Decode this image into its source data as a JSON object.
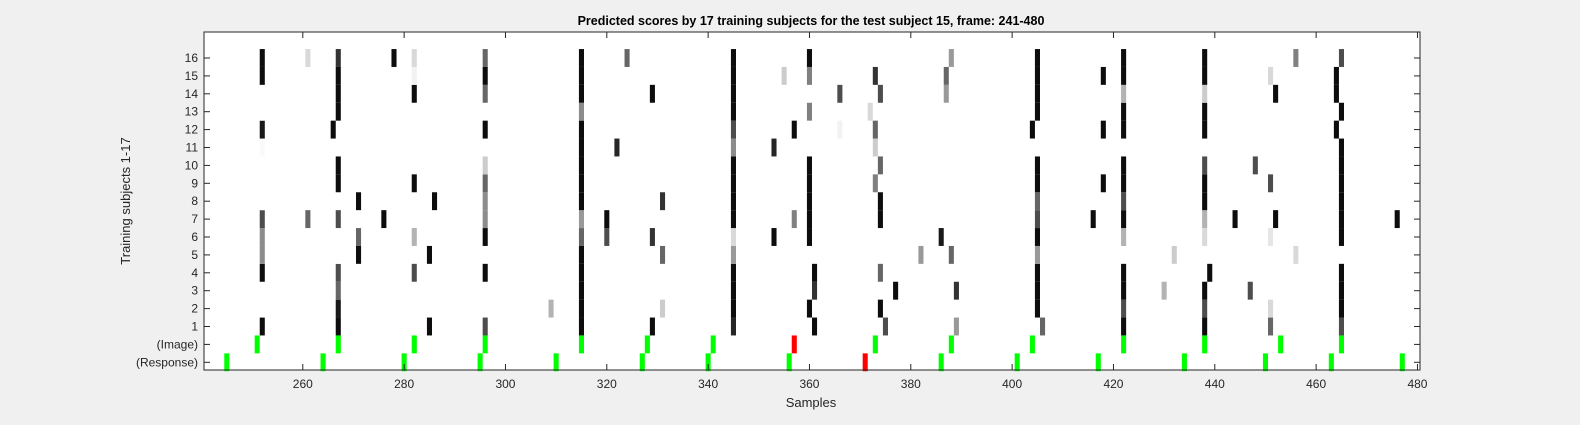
{
  "chart_data": {
    "type": "heatmap",
    "title": "Predicted scores by 17 training subjects for the test subject 15, frame: 241-480",
    "xlabel": "Samples",
    "ylabel": "Training subjects 1-17",
    "xlim": [
      241,
      480
    ],
    "xticks": [
      260,
      280,
      300,
      320,
      340,
      360,
      380,
      400,
      420,
      440,
      460,
      480
    ],
    "rows": [
      "16",
      "15",
      "14",
      "13",
      "12",
      "11",
      "10",
      "9",
      "8",
      "7",
      "6",
      "5",
      "4",
      "3",
      "2",
      "1",
      "(Image)",
      "(Response)"
    ],
    "grid": false,
    "colors": {
      "black": "#000000",
      "green": "#00ff00",
      "red": "#ff0000",
      "background": "#ffffff"
    },
    "subject_columns": [
      {
        "x": 252,
        "scores": {
          "16": 0.95,
          "15": 0.95,
          "14": 0,
          "13": 0,
          "12": 0.9,
          "11": 0.02,
          "10": 0,
          "9": 0,
          "8": 0,
          "7": 0.7,
          "6": 0.45,
          "5": 0.45,
          "4": 0.95,
          "3": 0,
          "2": 0,
          "1": 0.95
        }
      },
      {
        "x": 261,
        "scores": {
          "16": 0.15,
          "7": 0.6
        }
      },
      {
        "x": 266,
        "scores": {
          "12": 0.95
        }
      },
      {
        "x": 267,
        "scores": {
          "16": 0.8,
          "15": 0.95,
          "14": 0.95,
          "13": 0.95,
          "10": 0.95,
          "9": 0.95,
          "7": 0.7,
          "5": 0,
          "4": 0.7,
          "3": 0.6,
          "2": 0.9,
          "1": 0.95
        }
      },
      {
        "x": 271,
        "scores": {
          "8": 0.95,
          "6": 0.6,
          "5": 0.95
        }
      },
      {
        "x": 276,
        "scores": {
          "7": 0.95
        }
      },
      {
        "x": 278,
        "scores": {
          "16": 0.95
        }
      },
      {
        "x": 282,
        "scores": {
          "16": 0.15,
          "15": 0.05,
          "14": 0.95,
          "9": 0.95,
          "6": 0.3,
          "4": 0.7
        }
      },
      {
        "x": 285,
        "scores": {
          "1": 0.95,
          "5": 0.95
        }
      },
      {
        "x": 286,
        "scores": {
          "8": 0.95
        }
      },
      {
        "x": 296,
        "scores": {
          "16": 0.6,
          "15": 0.95,
          "14": 0.6,
          "12": 0.95,
          "10": 0.2,
          "9": 0.6,
          "8": 0.45,
          "7": 0.45,
          "6": 0.95,
          "4": 0.95,
          "1": 0.7
        }
      },
      {
        "x": 309,
        "scores": {
          "2": 0.3
        }
      },
      {
        "x": 315,
        "scores": {
          "14": 0.95,
          "13": 0.45,
          "12": 0.95,
          "10": 0.95,
          "9": 0.95,
          "8": 0.95,
          "7": 0.4,
          "6": 0.6,
          "4": 0.95,
          "3": 0.95,
          "2": 0.95,
          "1": 0.95,
          "16": 0.95,
          "15": 0.95,
          "11": 0.95,
          "5": 0.95
        }
      },
      {
        "x": 320,
        "scores": {
          "7": 0.95,
          "6": 0.7
        }
      },
      {
        "x": 322,
        "scores": {
          "11": 0.85
        }
      },
      {
        "x": 324,
        "scores": {
          "16": 0.6
        }
      },
      {
        "x": 329,
        "scores": {
          "14": 0.95,
          "6": 0.8,
          "1": 0.95
        }
      },
      {
        "x": 331,
        "scores": {
          "8": 0.8,
          "5": 0.6,
          "2": 0.2
        }
      },
      {
        "x": 345,
        "scores": {
          "16": 0.95,
          "15": 0.95,
          "14": 0.95,
          "13": 0.95,
          "12": 0.7,
          "11": 0.45,
          "10": 0.95,
          "9": 0.95,
          "8": 0.95,
          "7": 0.95,
          "6": 0.15,
          "5": 0.4,
          "4": 0.95,
          "3": 0.95,
          "2": 0.95,
          "1": 0.85
        }
      },
      {
        "x": 353,
        "scores": {
          "11": 0.85,
          "6": 0.95
        }
      },
      {
        "x": 355,
        "scores": {
          "15": 0.2
        }
      },
      {
        "x": 357,
        "scores": {
          "12": 0.95,
          "7": 0.5
        }
      },
      {
        "x": 360,
        "scores": {
          "16": 0.95,
          "15": 0.5,
          "13": 0.5,
          "10": 0.95,
          "9": 0.95,
          "8": 0.95,
          "7": 0.95,
          "6": 0.95,
          "2": 0.95
        }
      },
      {
        "x": 361,
        "scores": {
          "4": 0.95,
          "3": 0.8,
          "1": 0.95
        }
      },
      {
        "x": 366,
        "scores": {
          "14": 0.7,
          "12": 0.05
        }
      },
      {
        "x": 372,
        "scores": {
          "13": 0.15
        }
      },
      {
        "x": 373,
        "scores": {
          "15": 0.8,
          "12": 0.6,
          "11": 0.2,
          "9": 0.5
        }
      },
      {
        "x": 374,
        "scores": {
          "14": 0.7,
          "10": 0.6,
          "8": 0.95,
          "7": 0.95,
          "4": 0.6,
          "2": 0.95
        }
      },
      {
        "x": 375,
        "scores": {
          "1": 0.7
        }
      },
      {
        "x": 377,
        "scores": {
          "3": 0.95
        }
      },
      {
        "x": 382,
        "scores": {
          "5": 0.4
        }
      },
      {
        "x": 386,
        "scores": {
          "6": 0.9
        }
      },
      {
        "x": 387,
        "scores": {
          "15": 0.6,
          "14": 0.4
        }
      },
      {
        "x": 388,
        "scores": {
          "16": 0.4,
          "5": 0.6
        }
      },
      {
        "x": 389,
        "scores": {
          "3": 0.8,
          "1": 0.4
        }
      },
      {
        "x": 404,
        "scores": {
          "12": 0.95
        }
      },
      {
        "x": 405,
        "scores": {
          "16": 0.95,
          "15": 0.95,
          "14": 0.95,
          "13": 0.95,
          "10": 0.95,
          "9": 0.95,
          "8": 0.6,
          "7": 0.7,
          "6": 0.95,
          "5": 0.4,
          "4": 0.95,
          "3": 0.95,
          "2": 0.95
        }
      },
      {
        "x": 406,
        "scores": {
          "1": 0.6
        }
      },
      {
        "x": 416,
        "scores": {
          "7": 0.95
        }
      },
      {
        "x": 418,
        "scores": {
          "15": 0.95,
          "12": 0.95,
          "9": 0.95
        }
      },
      {
        "x": 422,
        "scores": {
          "16": 0.95,
          "15": 0.95,
          "14": 0.3,
          "13": 0.95,
          "12": 0.95,
          "10": 0.95,
          "9": 0.95,
          "8": 0.7,
          "7": 0.95,
          "6": 0.3,
          "4": 0.95,
          "3": 0.95,
          "2": 0.7,
          "1": 0.95
        }
      },
      {
        "x": 430,
        "scores": {
          "3": 0.3
        }
      },
      {
        "x": 432,
        "scores": {
          "5": 0.2
        }
      },
      {
        "x": 438,
        "scores": {
          "16": 0.95,
          "15": 0.95,
          "14": 0.2,
          "13": 0.95,
          "12": 0.95,
          "10": 0.7,
          "9": 0.95,
          "8": 0.95,
          "7": 0.3,
          "6": 0.15,
          "3": 0.95,
          "2": 0.7,
          "1": 0.95
        }
      },
      {
        "x": 439,
        "scores": {
          "4": 0.95
        }
      },
      {
        "x": 444,
        "scores": {
          "7": 0.95
        }
      },
      {
        "x": 447,
        "scores": {
          "3": 0.7
        }
      },
      {
        "x": 448,
        "scores": {
          "10": 0.7
        }
      },
      {
        "x": 451,
        "scores": {
          "15": 0.15,
          "9": 0.7,
          "6": 0.1,
          "2": 0.15,
          "1": 0.6
        }
      },
      {
        "x": 452,
        "scores": {
          "14": 0.95,
          "7": 0.95
        }
      },
      {
        "x": 456,
        "scores": {
          "16": 0.5,
          "5": 0.15
        }
      },
      {
        "x": 464,
        "scores": {
          "15": 0.95,
          "14": 0.95,
          "12": 0.95
        }
      },
      {
        "x": 465,
        "scores": {
          "16": 0.7,
          "13": 0.95,
          "11": 0.95,
          "10": 0.95,
          "9": 0.95,
          "8": 0.95,
          "7": 0.95,
          "6": 0.95,
          "4": 0.95,
          "3": 0.95,
          "2": 0.95,
          "1": 0.7
        }
      },
      {
        "x": 476,
        "scores": {
          "7": 0.95
        }
      }
    ],
    "image_markers": [
      {
        "x": 251,
        "color": "#00ff00"
      },
      {
        "x": 267,
        "color": "#00ff00"
      },
      {
        "x": 282,
        "color": "#00ff00"
      },
      {
        "x": 296,
        "color": "#00ff00"
      },
      {
        "x": 315,
        "color": "#00ff00"
      },
      {
        "x": 328,
        "color": "#00ff00"
      },
      {
        "x": 341,
        "color": "#00ff00"
      },
      {
        "x": 357,
        "color": "#ff0000"
      },
      {
        "x": 373,
        "color": "#00ff00"
      },
      {
        "x": 388,
        "color": "#00ff00"
      },
      {
        "x": 404,
        "color": "#00ff00"
      },
      {
        "x": 422,
        "color": "#00ff00"
      },
      {
        "x": 438,
        "color": "#00ff00"
      },
      {
        "x": 453,
        "color": "#00ff00"
      },
      {
        "x": 465,
        "color": "#00ff00"
      }
    ],
    "response_markers": [
      {
        "x": 245,
        "color": "#00ff00"
      },
      {
        "x": 264,
        "color": "#00ff00"
      },
      {
        "x": 280,
        "color": "#00ff00"
      },
      {
        "x": 295,
        "color": "#00ff00"
      },
      {
        "x": 310,
        "color": "#00ff00"
      },
      {
        "x": 327,
        "color": "#00ff00"
      },
      {
        "x": 340,
        "color": "#00ff00"
      },
      {
        "x": 356,
        "color": "#00ff00"
      },
      {
        "x": 371,
        "color": "#ff0000"
      },
      {
        "x": 386,
        "color": "#00ff00"
      },
      {
        "x": 401,
        "color": "#00ff00"
      },
      {
        "x": 417,
        "color": "#00ff00"
      },
      {
        "x": 434,
        "color": "#00ff00"
      },
      {
        "x": 450,
        "color": "#00ff00"
      },
      {
        "x": 463,
        "color": "#00ff00"
      },
      {
        "x": 477,
        "color": "#00ff00"
      }
    ]
  }
}
